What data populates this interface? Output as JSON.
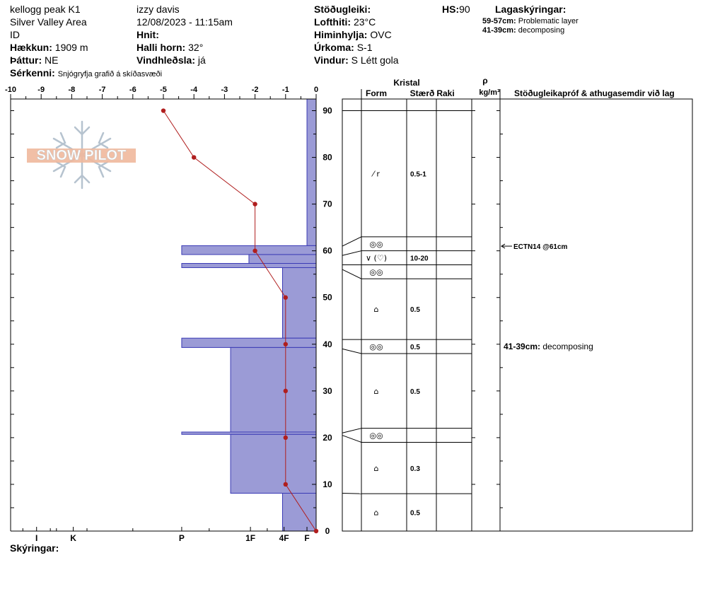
{
  "header": {
    "location": "kellogg peak K1",
    "area": "Silver Valley Area",
    "id_label": "ID",
    "elevation_label": "Hækkun:",
    "elevation_value": "1909 m",
    "aspect_label": "Þáttur:",
    "aspect_value": "NE",
    "observer": "izzy davis",
    "datetime": "12/08/2023 - 11:15am",
    "coords_label": "Hnit:",
    "slope_label": "Halli horn:",
    "slope_value": "32°",
    "wind_loading_label": "Vindhleðsla:",
    "wind_loading_value": "já",
    "stability_label": "Stöðugleiki:",
    "air_temp_label": "Lofthiti:",
    "air_temp_value": "23°C",
    "sky_label": "Himinhylja:",
    "sky_value": "OVC",
    "precip_label": "Úrkoma:",
    "precip_value": "S-1",
    "wind_label": "Vindur:",
    "wind_value": "S Létt gola",
    "hs_label": "HS:",
    "hs_value": "90",
    "layer_notes_label": "Lagaskýringar:",
    "layer_note_1_range": "59-57cm:",
    "layer_note_1_text": "Problematic layer",
    "layer_note_2_range": "41-39cm:",
    "layer_note_2_text": "decomposing",
    "features_label": "Sérkenni:",
    "features_value": "Snjógryfja grafið á skíðasvæði"
  },
  "logo": {
    "text": "SNOW PILOT"
  },
  "columns": {
    "crystal": "Kristal",
    "form": "Form",
    "size": "Stærð",
    "moisture": "Raki",
    "rho": "ρ",
    "density_unit": "kg/m³",
    "tests": "Stöðugleikapróf & athugasemdir við lag"
  },
  "footer": {
    "comments_label": "Skýringar:"
  },
  "colors": {
    "hardness_fill": "#9b9bd6",
    "hardness_stroke": "#3a3ab5",
    "temp_line": "#b01e1e"
  },
  "chart_data": {
    "type": "snow-profile",
    "temp_axis": {
      "ticks": [
        -10,
        -9,
        -8,
        -7,
        -6,
        -5,
        -4,
        -3,
        -2,
        -1,
        0
      ],
      "range": [
        -10,
        0
      ]
    },
    "depth_axis": {
      "ticks": [
        90,
        80,
        70,
        60,
        50,
        40,
        30,
        20,
        10,
        0
      ],
      "range": [
        0,
        92.5
      ]
    },
    "hardness_axis": {
      "labels": [
        "I",
        "K",
        "P",
        "1F",
        "4F",
        "F"
      ],
      "values": [
        -9.15,
        -7.95,
        -4.4,
        -2.15,
        -1.05,
        -0.3
      ]
    },
    "temperature_profile": [
      {
        "depth": 90,
        "temp": -5
      },
      {
        "depth": 80,
        "temp": -4
      },
      {
        "depth": 70,
        "temp": -2
      },
      {
        "depth": 60,
        "temp": -2
      },
      {
        "depth": 50,
        "temp": -1
      },
      {
        "depth": 40,
        "temp": -1
      },
      {
        "depth": 30,
        "temp": -1
      },
      {
        "depth": 20,
        "temp": -1
      },
      {
        "depth": 10,
        "temp": -1
      },
      {
        "depth": 0,
        "temp": 0
      }
    ],
    "hardness_layers": [
      {
        "top": 92.5,
        "bottom": 61.1,
        "hardness": -0.3
      },
      {
        "top": 61.1,
        "bottom": 59.2,
        "hardness": -4.4
      },
      {
        "top": 59.2,
        "bottom": 57.3,
        "hardness": -2.2
      },
      {
        "top": 57.3,
        "bottom": 56.4,
        "hardness": -4.4
      },
      {
        "top": 56.4,
        "bottom": 41.3,
        "hardness": -1.1
      },
      {
        "top": 41.3,
        "bottom": 39.3,
        "hardness": -4.4
      },
      {
        "top": 39.3,
        "bottom": 21.2,
        "hardness": -2.8
      },
      {
        "top": 21.2,
        "bottom": 20.7,
        "hardness": -4.4
      },
      {
        "top": 20.7,
        "bottom": 8.1,
        "hardness": -2.8
      },
      {
        "top": 8.1,
        "bottom": 0,
        "hardness": -1.1
      }
    ],
    "layer_boundaries": [
      90,
      63,
      60,
      57,
      54,
      41,
      38,
      22,
      19,
      8
    ],
    "layers": [
      {
        "top": 90,
        "bottom": 63,
        "form": "⁄ r",
        "size": "0.5-1"
      },
      {
        "top": 63,
        "bottom": 60,
        "form": "◎◎",
        "size": ""
      },
      {
        "top": 60,
        "bottom": 57,
        "form": "∨ (♡)",
        "size": "10-20"
      },
      {
        "top": 57,
        "bottom": 54,
        "form": "◎◎",
        "size": ""
      },
      {
        "top": 54,
        "bottom": 41,
        "form": "⌂",
        "size": "0.5"
      },
      {
        "top": 41,
        "bottom": 38,
        "form": "◎◎",
        "size": "0.5"
      },
      {
        "top": 38,
        "bottom": 22,
        "form": "⌂",
        "size": "0.5"
      },
      {
        "top": 22,
        "bottom": 19,
        "form": "◎◎",
        "size": ""
      },
      {
        "top": 19,
        "bottom": 8,
        "form": "⌂",
        "size": "0.3"
      },
      {
        "top": 8,
        "bottom": 0,
        "form": "⌂",
        "size": "0.5"
      }
    ],
    "test_results": [
      {
        "depth": 61,
        "text": "ECTN14 @61cm",
        "arrow": true
      },
      {
        "depth": 39.5,
        "range": "41-39cm:",
        "text": "decomposing",
        "arrow": false
      }
    ]
  }
}
